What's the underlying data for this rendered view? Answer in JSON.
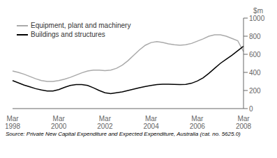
{
  "chart_data": {
    "type": "line",
    "y_label": "$m",
    "source": "Source: Private New Capital Expenditure and Expected Expenditure, Australia (cat. no. 5625.0)",
    "categories": [
      "Mar\n1998",
      null,
      null,
      null,
      null,
      null,
      null,
      null,
      "Mar\n2000",
      null,
      null,
      null,
      null,
      null,
      null,
      null,
      "Mar\n2002",
      null,
      null,
      null,
      null,
      null,
      null,
      null,
      "Mar\n2004",
      null,
      null,
      null,
      null,
      null,
      null,
      null,
      "Mar\n2006",
      null,
      null,
      null,
      null,
      null,
      null,
      null,
      "Mar\n2008"
    ],
    "series": [
      {
        "name": "Equipment, plant and machinery",
        "color": "#aaaaaa",
        "values": [
          415,
          400,
          380,
          355,
          330,
          310,
          300,
          300,
          310,
          325,
          345,
          370,
          395,
          415,
          425,
          425,
          420,
          425,
          445,
          480,
          530,
          590,
          650,
          700,
          730,
          740,
          730,
          715,
          705,
          700,
          705,
          720,
          745,
          770,
          800,
          815,
          815,
          800,
          775,
          750,
          630
        ]
      },
      {
        "name": "Buildings and structures",
        "color": "#000000",
        "values": [
          310,
          285,
          260,
          240,
          220,
          205,
          195,
          195,
          210,
          235,
          255,
          265,
          265,
          255,
          230,
          200,
          175,
          165,
          175,
          185,
          200,
          215,
          230,
          245,
          255,
          265,
          270,
          270,
          268,
          265,
          268,
          280,
          305,
          340,
          390,
          445,
          500,
          545,
          590,
          640,
          690
        ]
      }
    ],
    "ylim": [
      0,
      1000
    ],
    "yticks": [
      0,
      200,
      400,
      600,
      800,
      1000
    ],
    "legend": "upper left",
    "grid": false
  }
}
